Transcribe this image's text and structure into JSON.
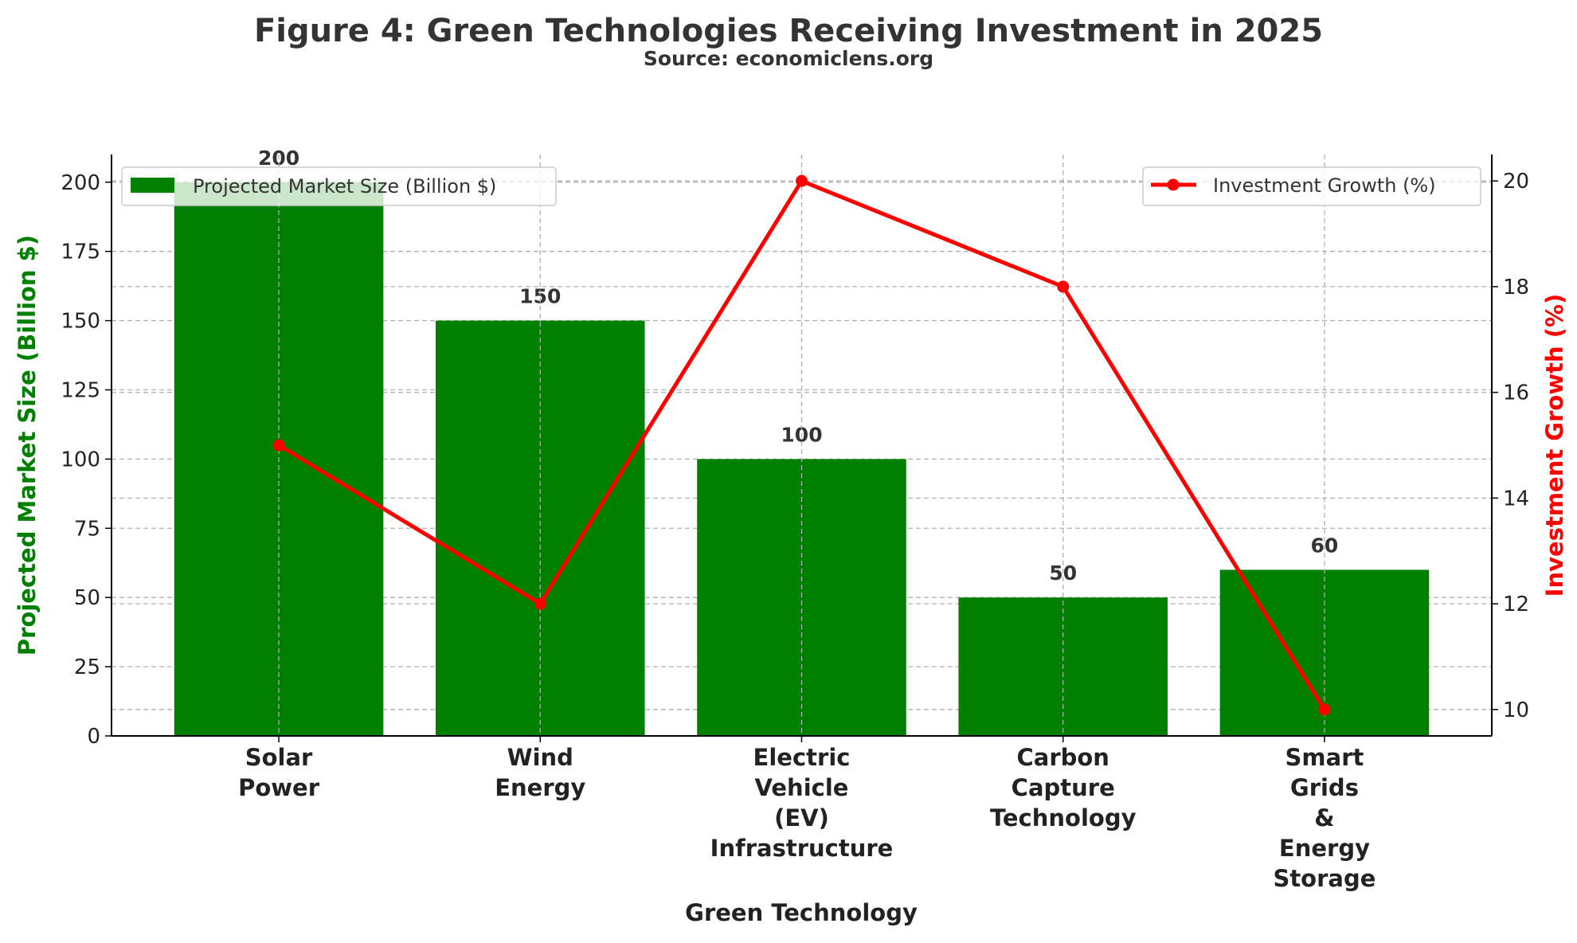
{
  "chart_data": {
    "type": "bar+line",
    "title": "Figure 4: Green Technologies Receiving Investment in 2025",
    "subtitle": "Source: economiclens.org",
    "xlabel": "Green Technology",
    "ylabel_left": "Projected Market Size (Billion $)",
    "ylabel_right": "Investment Growth (%)",
    "categories": [
      "Solar\nPower",
      "Wind\nEnergy",
      "Electric\nVehicle\n(EV)\nInfrastructure",
      "Carbon\nCapture\nTechnology",
      "Smart\nGrids\n&\nEnergy\nStorage"
    ],
    "series": [
      {
        "name": "Projected Market Size (Billion $)",
        "kind": "bar",
        "axis": "left",
        "values": [
          200,
          150,
          100,
          50,
          60
        ],
        "color": "#008000",
        "data_labels": [
          "200",
          "150",
          "100",
          "50",
          "60"
        ]
      },
      {
        "name": "Investment Growth (%)",
        "kind": "line",
        "axis": "right",
        "values": [
          15,
          12,
          20,
          18,
          10
        ],
        "color": "#ff0000",
        "marker": "circle"
      }
    ],
    "ylim_left": [
      0,
      210
    ],
    "yticks_left": [
      0,
      25,
      50,
      75,
      100,
      125,
      150,
      175,
      200
    ],
    "ylim_right": [
      9.5,
      20.5
    ],
    "yticks_right": [
      10,
      12,
      14,
      16,
      18,
      20
    ],
    "grid": true,
    "legend_left": "top-left",
    "legend_right": "top-right",
    "colors": {
      "left_axis_label": "#008000",
      "right_axis_label": "#ff0000",
      "text": "#333333",
      "grid": "#b0b0b0"
    }
  }
}
